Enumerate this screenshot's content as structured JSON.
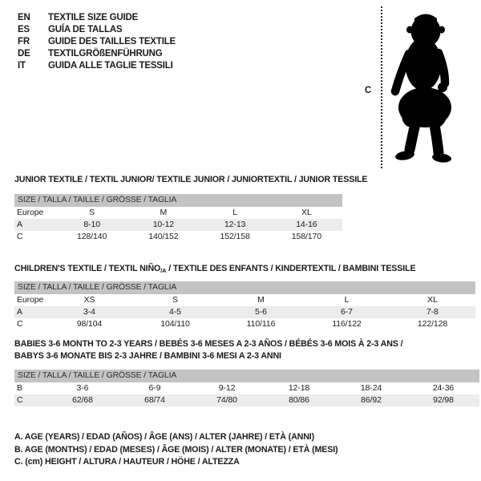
{
  "colors": {
    "header_band": "#c3c3c3",
    "row_shade": "#ececec",
    "ink": "#1b1b1b"
  },
  "languages": [
    {
      "code": "EN",
      "label": "TEXTILE SIZE GUIDE"
    },
    {
      "code": "ES",
      "label": "GUÍA DE TALLAS"
    },
    {
      "code": "FR",
      "label": "GUIDE DES TAILLES TEXTILE"
    },
    {
      "code": "DE",
      "label": "TEXTILGRÖßENFÜHRUNG"
    },
    {
      "code": "IT",
      "label": "GUIDA ALLE TAGLIE TESSILI"
    }
  ],
  "figure": {
    "height_label": "C",
    "illustration": "baby-silhouette"
  },
  "sections": [
    {
      "title_lines": [
        [
          {
            "t": "JUNIOR TEXTILE / TEXTIL JUNIOR/ TEXTILE JUNIOR / JUNIORTEXTIL / JUNIOR TESSILE"
          }
        ]
      ],
      "size_header": "SIZE / TALLA / TAILLE / GRÖSSE / TAGLIA",
      "rows": [
        {
          "label": "Europe",
          "values": [
            "S",
            "M",
            "L",
            "XL"
          ],
          "shaded": false
        },
        {
          "label": "A",
          "values": [
            "8-10",
            "10-12",
            "12-13",
            "14-16"
          ],
          "shaded": true
        },
        {
          "label": "C",
          "values": [
            "128/140",
            "140/152",
            "152/158",
            "158/170"
          ],
          "shaded": false
        }
      ]
    },
    {
      "title_lines": [
        [
          {
            "t": "CHILDREN'S TEXTILE / TEXTIL NIÑO"
          },
          {
            "t": "/A",
            "sub": true
          },
          {
            "t": " / TEXTILE DES ENFANTS / KINDERTEXTIL / BAMBINI TESSILE"
          }
        ]
      ],
      "size_header": "SIZE / TALLA / TAILLE / GRÖSSE / TAGLIA",
      "rows": [
        {
          "label": "Europe",
          "values": [
            "XS",
            "S",
            "M",
            "L",
            "XL"
          ],
          "shaded": false
        },
        {
          "label": "A",
          "values": [
            "3-4",
            "4-5",
            "5-6",
            "6-7",
            "7-8"
          ],
          "shaded": true
        },
        {
          "label": "C",
          "values": [
            "98/104",
            "104/110",
            "110/116",
            "116/122",
            "122/128"
          ],
          "shaded": false
        }
      ]
    },
    {
      "title_lines": [
        [
          {
            "t": "BABIES 3-6 MONTH TO 2-3 YEARS / BEBÉS 3-6 MESES A 2-3 AÑOS / BÉBÉS 3-6 MOIS À 2-3 ANS /"
          }
        ],
        [
          {
            "t": "BABYS 3-6 MONATE BIS 2-3 JAHRE / BAMBINI 3-6 MESI A 2-3 ANNI"
          }
        ]
      ],
      "size_header": "SIZE / TALLA / TAILLE / GRÖSSE / TAGLIA",
      "rows": [
        {
          "label": "B",
          "values": [
            "3-6",
            "6-9",
            "9-12",
            "12-18",
            "18-24",
            "24-36"
          ],
          "shaded": false
        },
        {
          "label": "C",
          "values": [
            "62/68",
            "68/74",
            "74/80",
            "80/86",
            "86/92",
            "92/98"
          ],
          "shaded": true
        }
      ]
    }
  ],
  "legend": {
    "lines": [
      "A. AGE (YEARS) / EDAD (AÑOS) / ÂGE (ANS) / ALTER (JAHRE) / ETÀ (ANNI)",
      "B. AGE (MONTHS) / EDAD (MESES) / ÂGE (MOIS) / ALTER (MONATE) / ETÀ (MESI)",
      "C. (cm) HEIGHT / ALTURA / HAUTEUR / HÖHE / ALTEZZA"
    ]
  }
}
